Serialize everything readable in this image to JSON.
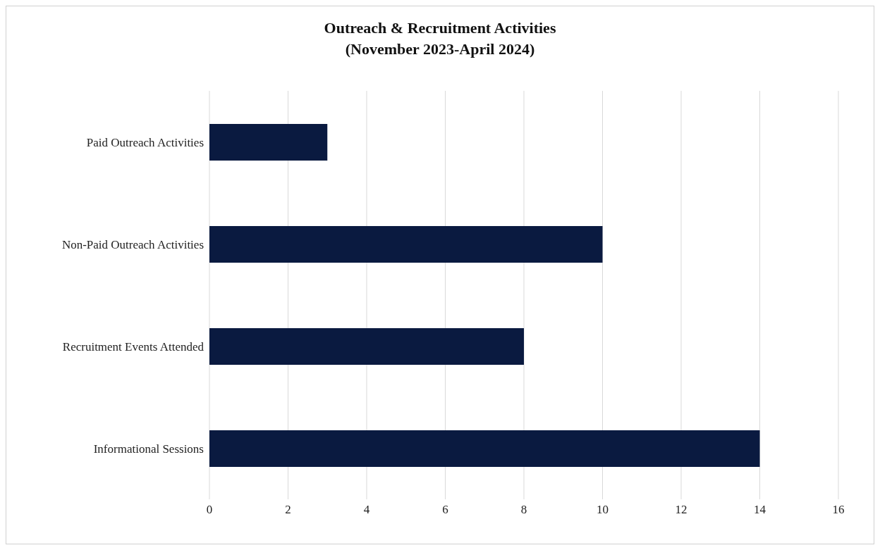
{
  "chart_data": {
    "type": "bar",
    "orientation": "horizontal",
    "title": "Outreach & Recruitment Activities\n(November 2023-April 2024)",
    "categories": [
      "Paid Outreach Activities",
      "Non-Paid Outreach Activities",
      "Recruitment Events Attended",
      "Informational Sessions"
    ],
    "values": [
      3,
      10,
      8,
      14
    ],
    "color": "#0a1a40",
    "xlim": [
      0,
      16
    ],
    "xticks": [
      0,
      2,
      4,
      6,
      8,
      10,
      12,
      14,
      16
    ],
    "grid": "x",
    "legend": false
  }
}
